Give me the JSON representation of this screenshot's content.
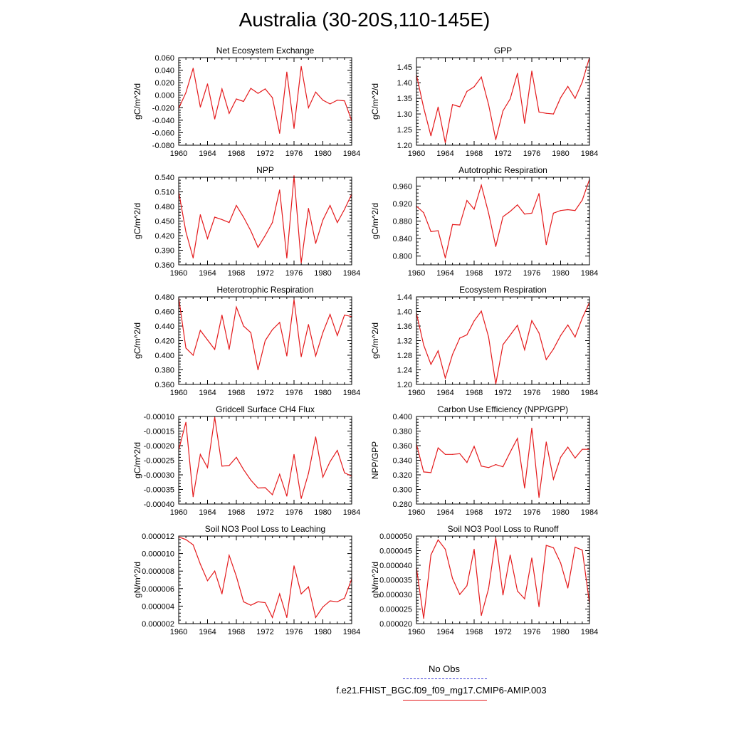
{
  "title": "Australia (30-20S,110-145E)",
  "legend": {
    "obs_label": "No Obs",
    "model_label": "f.e21.FHIST_BGC.f09_f09_mg17.CMIP6-AMIP.003",
    "obs_color": "#3b3bd6",
    "model_color": "#e41a1c"
  },
  "chart_data": [
    {
      "type": "line",
      "title": "Net Ecosystem Exchange",
      "ylabel": "gC/m^2/d",
      "xlim": [
        1960,
        1984
      ],
      "ylim": [
        -0.08,
        0.06
      ],
      "yticks": [
        "0.060",
        "0.040",
        "0.020",
        "0.000",
        "-0.020",
        "-0.040",
        "-0.060",
        "-0.080"
      ],
      "ytick_values": [
        0.06,
        0.04,
        0.02,
        0.0,
        -0.02,
        -0.04,
        -0.06,
        -0.08
      ],
      "xticks": [
        "1960",
        "1964",
        "1968",
        "1972",
        "1976",
        "1980",
        "1984"
      ],
      "xtick_values": [
        1960,
        1964,
        1968,
        1972,
        1976,
        1980,
        1984
      ],
      "x": [
        1960,
        1961,
        1962,
        1963,
        1964,
        1965,
        1966,
        1967,
        1968,
        1969,
        1970,
        1971,
        1972,
        1973,
        1974,
        1975,
        1976,
        1977,
        1978,
        1979,
        1980,
        1981,
        1982,
        1983,
        1984
      ],
      "values": [
        -0.021,
        0.004,
        0.043,
        -0.019,
        0.018,
        -0.038,
        0.01,
        -0.029,
        -0.006,
        -0.01,
        0.011,
        0.003,
        0.01,
        -0.004,
        -0.061,
        0.037,
        -0.053,
        0.046,
        -0.02,
        0.005,
        -0.008,
        -0.014,
        -0.008,
        -0.009,
        -0.041
      ]
    },
    {
      "type": "line",
      "title": "GPP",
      "ylabel": "gC/m^2/d",
      "xlim": [
        1960,
        1984
      ],
      "ylim": [
        1.2,
        1.48
      ],
      "yticks": [
        "1.45",
        "1.40",
        "1.35",
        "1.30",
        "1.25",
        "1.20"
      ],
      "ytick_values": [
        1.45,
        1.4,
        1.35,
        1.3,
        1.25,
        1.2
      ],
      "xticks": [
        "1960",
        "1964",
        "1968",
        "1972",
        "1976",
        "1980",
        "1984"
      ],
      "xtick_values": [
        1960,
        1964,
        1968,
        1972,
        1976,
        1980,
        1984
      ],
      "x": [
        1960,
        1961,
        1962,
        1963,
        1964,
        1965,
        1966,
        1967,
        1968,
        1969,
        1970,
        1971,
        1972,
        1973,
        1974,
        1975,
        1976,
        1977,
        1978,
        1979,
        1980,
        1981,
        1982,
        1983,
        1984
      ],
      "values": [
        1.425,
        1.32,
        1.23,
        1.322,
        1.208,
        1.33,
        1.323,
        1.372,
        1.387,
        1.418,
        1.33,
        1.218,
        1.31,
        1.348,
        1.43,
        1.27,
        1.437,
        1.306,
        1.302,
        1.3,
        1.352,
        1.388,
        1.35,
        1.402,
        1.48
      ]
    },
    {
      "type": "line",
      "title": "NPP",
      "ylabel": "gC/m^2/d",
      "xlim": [
        1960,
        1984
      ],
      "ylim": [
        0.36,
        0.54
      ],
      "yticks": [
        "0.540",
        "0.510",
        "0.480",
        "0.450",
        "0.420",
        "0.390",
        "0.360"
      ],
      "ytick_values": [
        0.54,
        0.51,
        0.48,
        0.45,
        0.42,
        0.39,
        0.36
      ],
      "xticks": [
        "1960",
        "1964",
        "1968",
        "1972",
        "1976",
        "1980",
        "1984"
      ],
      "xtick_values": [
        1960,
        1964,
        1968,
        1972,
        1976,
        1980,
        1984
      ],
      "x": [
        1960,
        1961,
        1962,
        1963,
        1964,
        1965,
        1966,
        1967,
        1968,
        1969,
        1970,
        1971,
        1972,
        1973,
        1974,
        1975,
        1976,
        1977,
        1978,
        1979,
        1980,
        1981,
        1982,
        1983,
        1984
      ],
      "values": [
        0.51,
        0.428,
        0.374,
        0.463,
        0.414,
        0.458,
        0.453,
        0.447,
        0.482,
        0.458,
        0.43,
        0.396,
        0.42,
        0.447,
        0.514,
        0.374,
        0.543,
        0.364,
        0.476,
        0.404,
        0.452,
        0.482,
        0.447,
        0.474,
        0.505
      ]
    },
    {
      "type": "line",
      "title": "Autotrophic Respiration",
      "ylabel": "gC/m^2/d",
      "xlim": [
        1960,
        1984
      ],
      "ylim": [
        0.78,
        0.98
      ],
      "yticks": [
        "0.960",
        "0.920",
        "0.880",
        "0.840",
        "0.800"
      ],
      "ytick_values": [
        0.96,
        0.92,
        0.88,
        0.84,
        0.8
      ],
      "xticks": [
        "1960",
        "1964",
        "1968",
        "1972",
        "1976",
        "1980",
        "1984"
      ],
      "xtick_values": [
        1960,
        1964,
        1968,
        1972,
        1976,
        1980,
        1984
      ],
      "x": [
        1960,
        1961,
        1962,
        1963,
        1964,
        1965,
        1966,
        1967,
        1968,
        1969,
        1970,
        1971,
        1972,
        1973,
        1974,
        1975,
        1976,
        1977,
        1978,
        1979,
        1980,
        1981,
        1982,
        1983,
        1984
      ],
      "values": [
        0.914,
        0.899,
        0.856,
        0.858,
        0.796,
        0.872,
        0.871,
        0.927,
        0.907,
        0.962,
        0.898,
        0.822,
        0.89,
        0.902,
        0.917,
        0.896,
        0.898,
        0.943,
        0.826,
        0.898,
        0.904,
        0.906,
        0.904,
        0.928,
        0.975
      ]
    },
    {
      "type": "line",
      "title": "Heterotrophic Respiration",
      "ylabel": "gC/m^2/d",
      "xlim": [
        1960,
        1984
      ],
      "ylim": [
        0.36,
        0.48
      ],
      "yticks": [
        "0.480",
        "0.460",
        "0.440",
        "0.420",
        "0.400",
        "0.380",
        "0.360"
      ],
      "ytick_values": [
        0.48,
        0.46,
        0.44,
        0.42,
        0.4,
        0.38,
        0.36
      ],
      "xticks": [
        "1960",
        "1964",
        "1968",
        "1972",
        "1976",
        "1980",
        "1984"
      ],
      "xtick_values": [
        1960,
        1964,
        1968,
        1972,
        1976,
        1980,
        1984
      ],
      "x": [
        1960,
        1961,
        1962,
        1963,
        1964,
        1965,
        1966,
        1967,
        1968,
        1969,
        1970,
        1971,
        1972,
        1973,
        1974,
        1975,
        1976,
        1977,
        1978,
        1979,
        1980,
        1981,
        1982,
        1983,
        1984
      ],
      "values": [
        0.479,
        0.41,
        0.4,
        0.434,
        0.421,
        0.408,
        0.455,
        0.408,
        0.466,
        0.44,
        0.431,
        0.38,
        0.42,
        0.435,
        0.445,
        0.399,
        0.476,
        0.398,
        0.442,
        0.399,
        0.431,
        0.456,
        0.427,
        0.455,
        0.453
      ]
    },
    {
      "type": "line",
      "title": "Ecosystem Respiration",
      "ylabel": "gC/m^2/d",
      "xlim": [
        1960,
        1984
      ],
      "ylim": [
        1.2,
        1.44
      ],
      "yticks": [
        "1.44",
        "1.40",
        "1.36",
        "1.32",
        "1.28",
        "1.24",
        "1.20"
      ],
      "ytick_values": [
        1.44,
        1.4,
        1.36,
        1.32,
        1.28,
        1.24,
        1.2
      ],
      "xticks": [
        "1960",
        "1964",
        "1968",
        "1972",
        "1976",
        "1980",
        "1984"
      ],
      "xtick_values": [
        1960,
        1964,
        1968,
        1972,
        1976,
        1980,
        1984
      ],
      "x": [
        1960,
        1961,
        1962,
        1963,
        1964,
        1965,
        1966,
        1967,
        1968,
        1969,
        1970,
        1971,
        1972,
        1973,
        1974,
        1975,
        1976,
        1977,
        1978,
        1979,
        1980,
        1981,
        1982,
        1983,
        1984
      ],
      "values": [
        1.395,
        1.308,
        1.255,
        1.292,
        1.217,
        1.282,
        1.327,
        1.336,
        1.374,
        1.401,
        1.33,
        1.201,
        1.309,
        1.335,
        1.362,
        1.295,
        1.375,
        1.341,
        1.268,
        1.297,
        1.334,
        1.363,
        1.33,
        1.382,
        1.425
      ]
    },
    {
      "type": "line",
      "title": "Gridcell Surface CH4 Flux",
      "ylabel": "gC/m^2/d",
      "xlim": [
        1960,
        1984
      ],
      "ylim": [
        -0.0004,
        -0.0001
      ],
      "yticks": [
        "-0.00010",
        "-0.00015",
        "-0.00020",
        "-0.00025",
        "-0.00030",
        "-0.00035",
        "-0.00040"
      ],
      "ytick_values": [
        -0.0001,
        -0.00015,
        -0.0002,
        -0.00025,
        -0.0003,
        -0.00035,
        -0.0004
      ],
      "xticks": [
        "1960",
        "1964",
        "1968",
        "1972",
        "1976",
        "1980",
        "1984"
      ],
      "xtick_values": [
        1960,
        1964,
        1968,
        1972,
        1976,
        1980,
        1984
      ],
      "x": [
        1960,
        1961,
        1962,
        1963,
        1964,
        1965,
        1966,
        1967,
        1968,
        1969,
        1970,
        1971,
        1972,
        1973,
        1974,
        1975,
        1976,
        1977,
        1978,
        1979,
        1980,
        1981,
        1982,
        1983,
        1984
      ],
      "values": [
        -0.000215,
        -0.00012,
        -0.000375,
        -0.00023,
        -0.000275,
        -0.000103,
        -0.00027,
        -0.000268,
        -0.00024,
        -0.000282,
        -0.000318,
        -0.000345,
        -0.000344,
        -0.000368,
        -0.000298,
        -0.000373,
        -0.00023,
        -0.000381,
        -0.000295,
        -0.00017,
        -0.000308,
        -0.000255,
        -0.000216,
        -0.000293,
        -0.000305
      ]
    },
    {
      "type": "line",
      "title": "Carbon Use Efficiency (NPP/GPP)",
      "ylabel": "NPP/GPP",
      "xlim": [
        1960,
        1984
      ],
      "ylim": [
        0.28,
        0.4
      ],
      "yticks": [
        "0.400",
        "0.380",
        "0.360",
        "0.340",
        "0.320",
        "0.300",
        "0.280"
      ],
      "ytick_values": [
        0.4,
        0.38,
        0.36,
        0.34,
        0.32,
        0.3,
        0.28
      ],
      "xticks": [
        "1960",
        "1964",
        "1968",
        "1972",
        "1976",
        "1980",
        "1984"
      ],
      "xtick_values": [
        1960,
        1964,
        1968,
        1972,
        1976,
        1980,
        1984
      ],
      "x": [
        1960,
        1961,
        1962,
        1963,
        1964,
        1965,
        1966,
        1967,
        1968,
        1969,
        1970,
        1971,
        1972,
        1973,
        1974,
        1975,
        1976,
        1977,
        1978,
        1979,
        1980,
        1981,
        1982,
        1983,
        1984
      ],
      "values": [
        0.362,
        0.324,
        0.323,
        0.357,
        0.348,
        0.348,
        0.349,
        0.337,
        0.359,
        0.332,
        0.33,
        0.334,
        0.331,
        0.351,
        0.37,
        0.302,
        0.384,
        0.289,
        0.365,
        0.314,
        0.344,
        0.358,
        0.343,
        0.355,
        0.355
      ]
    },
    {
      "type": "line",
      "title": "Soil NO3 Pool Loss to Leaching",
      "ylabel": "gN/m^2/d",
      "xlim": [
        1960,
        1984
      ],
      "ylim": [
        2e-06,
        1.2e-05
      ],
      "yticks": [
        "0.000012",
        "0.000010",
        "0.000008",
        "0.000006",
        "0.000004",
        "0.000002"
      ],
      "ytick_values": [
        1.2e-05,
        1e-05,
        8e-06,
        6e-06,
        4e-06,
        2e-06
      ],
      "xticks": [
        "1960",
        "1964",
        "1968",
        "1972",
        "1976",
        "1980",
        "1984"
      ],
      "xtick_values": [
        1960,
        1964,
        1968,
        1972,
        1976,
        1980,
        1984
      ],
      "x": [
        1960,
        1961,
        1962,
        1963,
        1964,
        1965,
        1966,
        1967,
        1968,
        1969,
        1970,
        1971,
        1972,
        1973,
        1974,
        1975,
        1976,
        1977,
        1978,
        1979,
        1980,
        1981,
        1982,
        1983,
        1984
      ],
      "values": [
        1.19e-05,
        1.16e-05,
        1.1e-05,
        8.8e-06,
        6.9e-06,
        8e-06,
        5.4e-06,
        9.8e-06,
        7.4e-06,
        4.5e-06,
        4.1e-06,
        4.5e-06,
        4.4e-06,
        2.7e-06,
        5.4e-06,
        2.7e-06,
        8.6e-06,
        5.4e-06,
        6.2e-06,
        2.7e-06,
        3.9e-06,
        4.6e-06,
        4.5e-06,
        4.9e-06,
        7.1e-06
      ]
    },
    {
      "type": "line",
      "title": "Soil NO3 Pool Loss to Runoff",
      "ylabel": "gN/m^2/d",
      "xlim": [
        1960,
        1984
      ],
      "ylim": [
        2e-05,
        5e-05
      ],
      "yticks": [
        "0.000050",
        "0.000045",
        "0.000040",
        "0.000035",
        "0.000030",
        "0.000025",
        "0.000020"
      ],
      "ytick_values": [
        5e-05,
        4.5e-05,
        4e-05,
        3.5e-05,
        3e-05,
        2.5e-05,
        2e-05
      ],
      "xticks": [
        "1960",
        "1964",
        "1968",
        "1972",
        "1976",
        "1980",
        "1984"
      ],
      "xtick_values": [
        1960,
        1964,
        1968,
        1972,
        1976,
        1980,
        1984
      ],
      "x": [
        1960,
        1961,
        1962,
        1963,
        1964,
        1965,
        1966,
        1967,
        1968,
        1969,
        1970,
        1971,
        1972,
        1973,
        1974,
        1975,
        1976,
        1977,
        1978,
        1979,
        1980,
        1981,
        1982,
        1983,
        1984
      ],
      "values": [
        3.9e-05,
        2.18e-05,
        4.35e-05,
        4.87e-05,
        4.55e-05,
        3.55e-05,
        3e-05,
        3.3e-05,
        4.55e-05,
        2.28e-05,
        3.2e-05,
        4.93e-05,
        2.98e-05,
        4.35e-05,
        3.12e-05,
        2.85e-05,
        4.25e-05,
        2.58e-05,
        4.68e-05,
        4.6e-05,
        4.08e-05,
        3.22e-05,
        4.62e-05,
        4.52e-05,
        2.7e-05
      ]
    }
  ]
}
